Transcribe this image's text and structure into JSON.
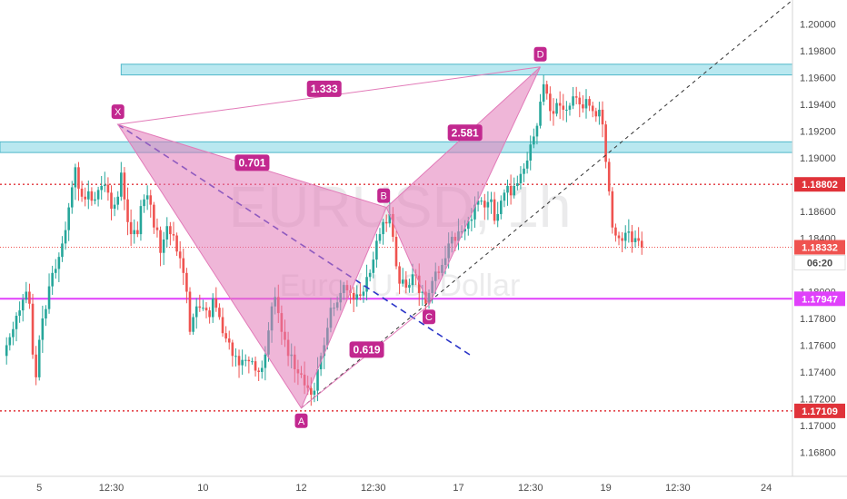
{
  "chart_data": {
    "type": "candlestick",
    "symbol_watermark": "EURUSD, 1h",
    "name_watermark": "Euro / U.S. Dollar",
    "y_range": [
      1.1662,
      1.2018
    ],
    "y_ticks": [
      "1.20000",
      "1.19800",
      "1.19600",
      "1.19400",
      "1.19200",
      "1.19000",
      "1.18600",
      "1.18400",
      "1.18000",
      "1.17800",
      "1.17600",
      "1.17400",
      "1.17200",
      "1.17000",
      "1.16800"
    ],
    "y_tick_values": [
      1.2,
      1.198,
      1.196,
      1.194,
      1.192,
      1.19,
      1.186,
      1.184,
      1.18,
      1.178,
      1.176,
      1.174,
      1.172,
      1.17,
      1.168
    ],
    "x_ticks": [
      "5",
      "12:30",
      "10",
      "12",
      "12:30",
      "17",
      "12:30",
      "19",
      "12:30",
      "24"
    ],
    "x_tick_values": [
      10,
      32,
      60,
      90,
      112,
      138,
      160,
      183,
      205,
      232
    ],
    "x_range": [
      -2,
      240
    ],
    "colors": {
      "up": "#26a69a",
      "down": "#ef5350",
      "pattern": "#e27ab8",
      "zone": "#7fd6e3",
      "level": "#e040fb",
      "dotted": "#e0333a"
    },
    "horizontal_levels": [
      {
        "value": 1.18802,
        "label": "1.18802",
        "style": "dotted",
        "color": "#e0333a"
      },
      {
        "value": 1.17109,
        "label": "1.17109",
        "style": "dotted",
        "color": "#e0333a"
      },
      {
        "value": 1.17947,
        "label": "1.17947",
        "style": "solid",
        "color": "#e040fb"
      }
    ],
    "current_price": {
      "value": 1.18332,
      "label": "1.18332",
      "countdown": "06:20"
    },
    "zones": [
      {
        "from": 1.1962,
        "to": 1.197,
        "x_start": 35
      },
      {
        "from": 1.1904,
        "to": 1.1912,
        "x_start": -2
      }
    ],
    "harmonic_pattern": {
      "points": [
        {
          "label": "X",
          "x": 34,
          "y": 1.1925
        },
        {
          "label": "A",
          "x": 90,
          "y": 1.1713
        },
        {
          "label": "B",
          "x": 116,
          "y": 1.1863
        },
        {
          "label": "C",
          "x": 129,
          "y": 1.179
        },
        {
          "label": "D",
          "x": 163,
          "y": 1.1968
        }
      ],
      "ratios": [
        {
          "label": "0.701",
          "x": 75,
          "y": 1.18964
        },
        {
          "label": "1.333",
          "x": 97,
          "y": 1.19516
        },
        {
          "label": "2.581",
          "x": 140,
          "y": 1.19188
        },
        {
          "label": "0.619",
          "x": 110,
          "y": 1.17567
        }
      ]
    },
    "candles_close": [
      1.176,
      1.1766,
      1.1772,
      1.1782,
      1.1786,
      1.1794,
      1.18,
      1.1791,
      1.1753,
      1.1736,
      1.1764,
      1.178,
      1.1787,
      1.1804,
      1.1814,
      1.1817,
      1.1826,
      1.1836,
      1.1846,
      1.1863,
      1.1878,
      1.1893,
      1.1877,
      1.1871,
      1.1869,
      1.1875,
      1.1868,
      1.1869,
      1.1876,
      1.1879,
      1.188,
      1.1874,
      1.1862,
      1.1865,
      1.1871,
      1.1889,
      1.1869,
      1.1852,
      1.1843,
      1.1846,
      1.1843,
      1.1864,
      1.1869,
      1.1872,
      1.1865,
      1.1848,
      1.1846,
      1.1829,
      1.1839,
      1.1849,
      1.1843,
      1.1842,
      1.183,
      1.1825,
      1.1814,
      1.18,
      1.177,
      1.1781,
      1.1789,
      1.1788,
      1.1788,
      1.1786,
      1.1781,
      1.1795,
      1.1788,
      1.1781,
      1.1769,
      1.1765,
      1.1762,
      1.1752,
      1.1752,
      1.1745,
      1.1749,
      1.1749,
      1.1748,
      1.1748,
      1.1741,
      1.174,
      1.1743,
      1.1753,
      1.1771,
      1.1789,
      1.1796,
      1.1784,
      1.177,
      1.1764,
      1.1752,
      1.1753,
      1.1742,
      1.1739,
      1.1738,
      1.173,
      1.1728,
      1.1723,
      1.1726,
      1.1742,
      1.1752,
      1.176,
      1.1773,
      1.1788,
      1.1788,
      1.1792,
      1.1799,
      1.1805,
      1.1801,
      1.1799,
      1.1794,
      1.1798,
      1.1797,
      1.18,
      1.1811,
      1.1814,
      1.1824,
      1.1838,
      1.1843,
      1.1852,
      1.1851,
      1.1858,
      1.1841,
      1.1819,
      1.1806,
      1.1809,
      1.1803,
      1.1805,
      1.1813,
      1.1812,
      1.1799,
      1.18,
      1.1791,
      1.1799,
      1.1808,
      1.1815,
      1.1814,
      1.182,
      1.1825,
      1.1836,
      1.1841,
      1.1838,
      1.1845,
      1.1845,
      1.1847,
      1.1853,
      1.1854,
      1.1865,
      1.1868,
      1.1868,
      1.1863,
      1.1867,
      1.1869,
      1.1853,
      1.1858,
      1.1868,
      1.1874,
      1.1879,
      1.1872,
      1.1879,
      1.1881,
      1.1888,
      1.1892,
      1.1898,
      1.191,
      1.1916,
      1.1924,
      1.1942,
      1.1955,
      1.1948,
      1.1935,
      1.1933,
      1.1941,
      1.1939,
      1.1936,
      1.1936,
      1.1939,
      1.1946,
      1.1945,
      1.194,
      1.1937,
      1.1944,
      1.1939,
      1.1935,
      1.1931,
      1.1936,
      1.1925,
      1.1897,
      1.1875,
      1.1848,
      1.1842,
      1.184,
      1.1838,
      1.1844,
      1.1845,
      1.1837,
      1.184,
      1.1838,
      1.1833
    ]
  }
}
